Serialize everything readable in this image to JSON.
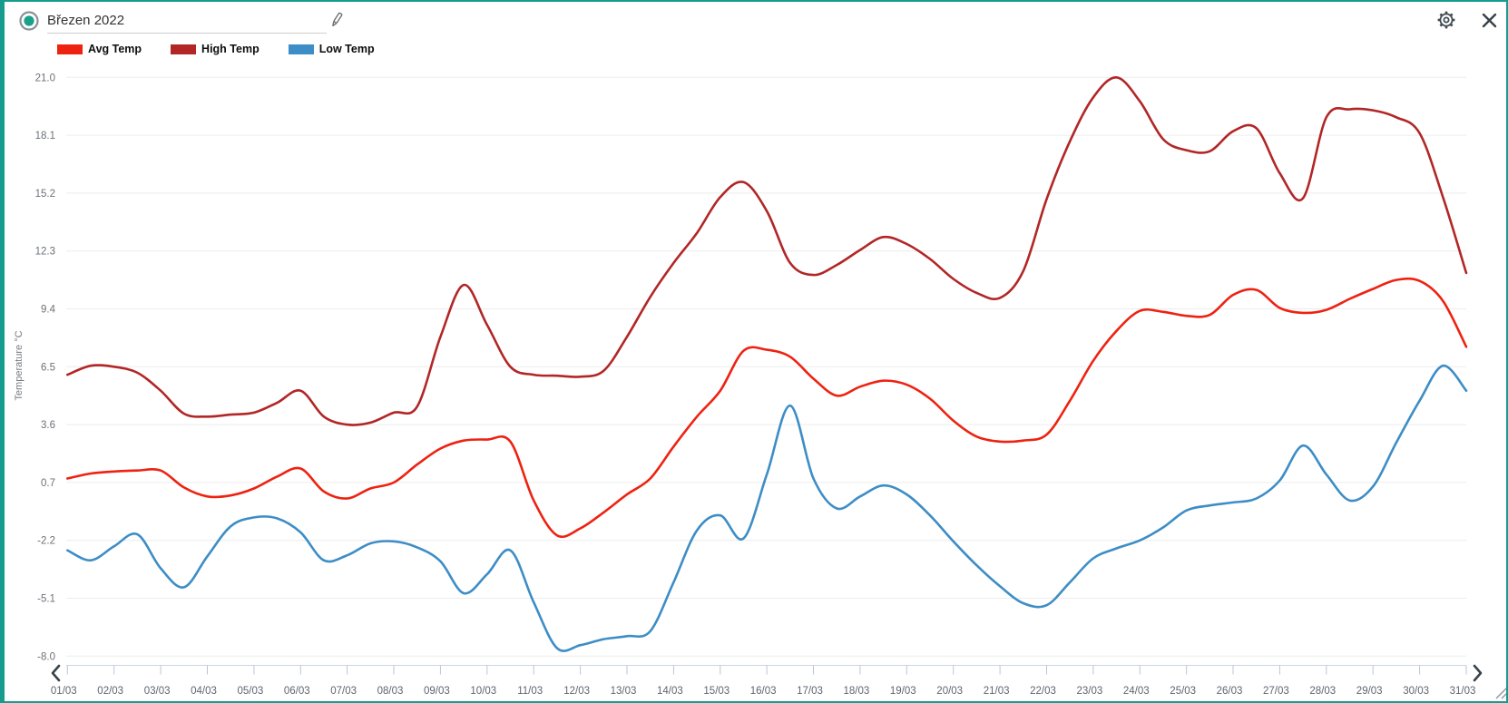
{
  "window": {
    "title_value": "Březen 2022",
    "accent_color": "#169c8e"
  },
  "icons": {
    "status": "circle-dot",
    "edit": "pencil",
    "settings": "gear",
    "close": "x",
    "prev": "chevron-left",
    "next": "chevron-right",
    "resize": "diagonal-grip"
  },
  "legend": [
    {
      "label": "Avg Temp",
      "color": "#ee2211"
    },
    {
      "label": "High Temp",
      "color": "#b22626"
    },
    {
      "label": "Low Temp",
      "color": "#3d8dc6"
    }
  ],
  "chart_data": {
    "type": "line",
    "title": "Březen 2022",
    "xlabel": "",
    "ylabel": "Temperature °C",
    "ylim": [
      -8.0,
      21.0
    ],
    "grid": "horizontal",
    "legend_position": "top-left",
    "y_ticks": [
      21.0,
      18.1,
      15.2,
      12.3,
      9.4,
      6.5,
      3.6,
      0.7,
      -2.2,
      -5.1,
      -8.0
    ],
    "y_tick_labels": [
      "21.0",
      "18.1",
      "15.2",
      "12.3",
      "9.4",
      "6.5",
      "3.6",
      "0.7",
      "-2.2",
      "-5.1",
      "-8.0"
    ],
    "x_tick_labels": [
      "01/03",
      "02/03",
      "03/03",
      "04/03",
      "05/03",
      "06/03",
      "07/03",
      "08/03",
      "09/03",
      "10/03",
      "11/03",
      "12/03",
      "13/03",
      "14/03",
      "15/03",
      "16/03",
      "17/03",
      "18/03",
      "19/03",
      "20/03",
      "21/03",
      "22/03",
      "23/03",
      "24/03",
      "25/03",
      "26/03",
      "27/03",
      "28/03",
      "29/03",
      "30/03",
      "31/03"
    ],
    "x_unit": "day of March (half-day sampling)",
    "x": [
      1,
      1.5,
      2,
      2.5,
      3,
      3.5,
      4,
      4.5,
      5,
      5.5,
      6,
      6.5,
      7,
      7.5,
      8,
      8.5,
      9,
      9.5,
      10,
      10.5,
      11,
      11.5,
      12,
      12.5,
      13,
      13.5,
      14,
      14.5,
      15,
      15.5,
      16,
      16.5,
      17,
      17.5,
      18,
      18.5,
      19,
      19.5,
      20,
      20.5,
      21,
      21.5,
      22,
      22.5,
      23,
      23.5,
      24,
      24.5,
      25,
      25.5,
      26,
      26.5,
      27,
      27.5,
      28,
      28.5,
      29,
      29.5,
      30,
      30.5,
      31
    ],
    "series": [
      {
        "name": "Avg Temp",
        "color": "#ee2211",
        "values": [
          0.9,
          1.15,
          1.25,
          1.3,
          1.3,
          0.45,
          0.0,
          0.05,
          0.4,
          1.0,
          1.4,
          0.25,
          -0.1,
          0.4,
          0.7,
          1.6,
          2.4,
          2.8,
          2.85,
          2.75,
          -0.2,
          -1.95,
          -1.6,
          -0.8,
          0.1,
          0.9,
          2.5,
          4.0,
          5.3,
          7.3,
          7.35,
          7.0,
          5.9,
          5.05,
          5.5,
          5.8,
          5.6,
          4.9,
          3.8,
          3.0,
          2.75,
          2.8,
          3.1,
          4.8,
          6.8,
          8.3,
          9.3,
          9.25,
          9.05,
          9.1,
          10.1,
          10.35,
          9.45,
          9.2,
          9.35,
          9.9,
          10.4,
          10.85,
          10.8,
          9.8,
          7.5
        ]
      },
      {
        "name": "High Temp",
        "color": "#b22626",
        "values": [
          6.1,
          6.55,
          6.5,
          6.2,
          5.3,
          4.15,
          4.0,
          4.1,
          4.2,
          4.7,
          5.3,
          4.0,
          3.6,
          3.7,
          4.2,
          4.5,
          8.0,
          10.6,
          8.6,
          6.5,
          6.1,
          6.05,
          6.0,
          6.3,
          8.0,
          10.0,
          11.7,
          13.2,
          15.0,
          15.75,
          14.3,
          11.7,
          11.1,
          11.6,
          12.35,
          13.0,
          12.65,
          11.9,
          10.9,
          10.2,
          9.95,
          11.3,
          14.9,
          17.8,
          20.0,
          21.0,
          19.8,
          17.9,
          17.35,
          17.3,
          18.3,
          18.45,
          16.2,
          14.95,
          19.0,
          19.4,
          19.35,
          19.0,
          18.2,
          15.0,
          11.2
        ]
      },
      {
        "name": "Low Temp",
        "color": "#3d8dc6",
        "values": [
          -2.7,
          -3.2,
          -2.5,
          -1.9,
          -3.6,
          -4.55,
          -3.0,
          -1.5,
          -1.05,
          -1.1,
          -1.8,
          -3.2,
          -2.95,
          -2.35,
          -2.25,
          -2.55,
          -3.25,
          -4.85,
          -3.9,
          -2.7,
          -5.3,
          -7.6,
          -7.45,
          -7.15,
          -7.0,
          -6.75,
          -4.3,
          -1.7,
          -0.95,
          -2.1,
          1.1,
          4.55,
          0.9,
          -0.6,
          0.0,
          0.55,
          0.1,
          -0.95,
          -2.25,
          -3.45,
          -4.5,
          -5.35,
          -5.45,
          -4.3,
          -3.1,
          -2.6,
          -2.2,
          -1.55,
          -0.7,
          -0.45,
          -0.3,
          -0.1,
          0.8,
          2.55,
          1.1,
          -0.2,
          0.5,
          2.7,
          4.8,
          6.55,
          5.3
        ]
      }
    ]
  }
}
